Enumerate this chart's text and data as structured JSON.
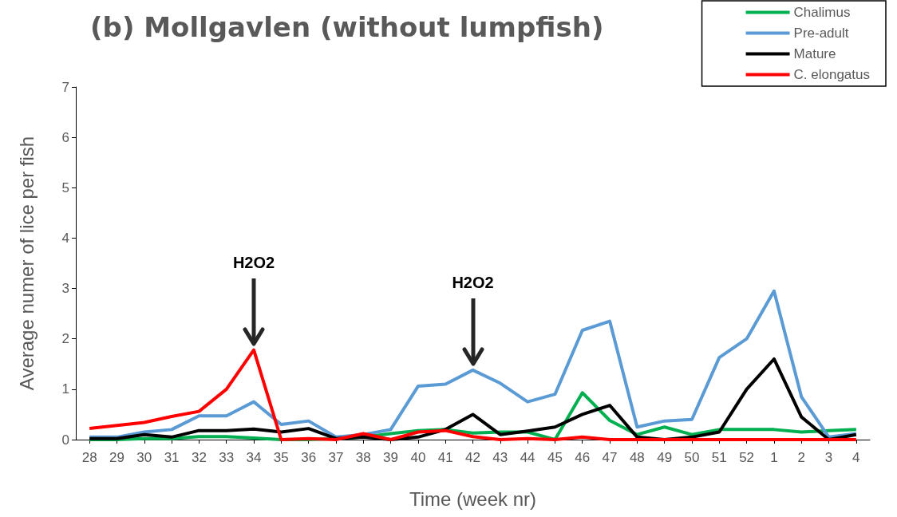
{
  "chart_data": {
    "type": "line",
    "title": "(b) Mollgavlen (without lumpfish)",
    "xlabel": "Time (week nr)",
    "ylabel": "Average numer of lice per fish",
    "categories": [
      "28",
      "29",
      "30",
      "31",
      "32",
      "33",
      "34",
      "35",
      "36",
      "37",
      "38",
      "39",
      "40",
      "41",
      "42",
      "43",
      "44",
      "45",
      "46",
      "47",
      "48",
      "49",
      "50",
      "51",
      "52",
      "1",
      "2",
      "3",
      "4"
    ],
    "series": [
      {
        "name": "Chalimus",
        "color": "#00b050",
        "values": [
          0,
          0,
          0.02,
          0.02,
          0.06,
          0.06,
          0.03,
          0,
          0,
          0.02,
          0.05,
          0.12,
          0.18,
          0.2,
          0.13,
          0.15,
          0.15,
          0,
          0.93,
          0.38,
          0.1,
          0.25,
          0.1,
          0.2,
          0.2,
          0.2,
          0.15,
          0.18,
          0.2
        ]
      },
      {
        "name": "Pre-adult",
        "color": "#5b9bd5",
        "values": [
          0.05,
          0.05,
          0.15,
          0.2,
          0.47,
          0.47,
          0.75,
          0.3,
          0.37,
          0.05,
          0.1,
          0.2,
          1.06,
          1.1,
          1.38,
          1.12,
          0.75,
          0.9,
          2.17,
          2.35,
          0.25,
          0.37,
          0.4,
          1.63,
          2.0,
          2.95,
          0.85,
          0.05,
          0.12
        ]
      },
      {
        "name": "Mature",
        "color": "#000000",
        "values": [
          0.02,
          0.02,
          0.1,
          0.05,
          0.18,
          0.18,
          0.21,
          0.15,
          0.22,
          0.02,
          0.05,
          0,
          0.05,
          0.2,
          0.5,
          0.1,
          0.17,
          0.25,
          0.5,
          0.68,
          0.05,
          0,
          0.05,
          0.15,
          1.0,
          1.6,
          0.45,
          0,
          0.1
        ]
      },
      {
        "name": "C. elongatus",
        "color": "#ff0000",
        "values": [
          0.22,
          0.28,
          0.34,
          0.46,
          0.56,
          1.0,
          1.78,
          0,
          0.02,
          0,
          0.12,
          0,
          0.15,
          0.18,
          0.06,
          0,
          0.02,
          0,
          0.05,
          0,
          0,
          0,
          0,
          0,
          0,
          0,
          0,
          0,
          0
        ]
      }
    ],
    "ylim": [
      0,
      7
    ],
    "yticks": [
      0,
      1,
      2,
      3,
      4,
      5,
      6,
      7
    ],
    "grid": false,
    "legend": "top right",
    "marker": "none",
    "line_style": "solid",
    "annotations": [
      {
        "text": "H2O2",
        "x": "34",
        "y": 1.78
      },
      {
        "text": "H2O2",
        "x": "42",
        "y": 1.38
      }
    ]
  }
}
